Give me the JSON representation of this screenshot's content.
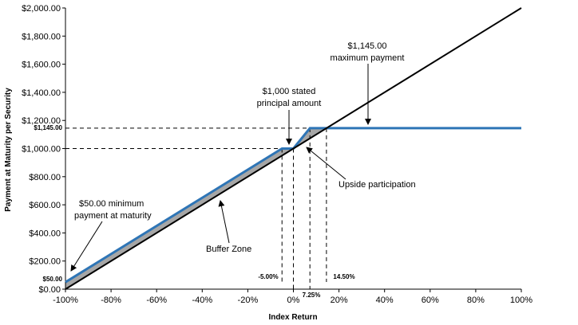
{
  "chart_data": {
    "type": "line",
    "xlabel": "Index Return",
    "ylabel": "Payment at Maturity per Security",
    "x_ticks": [
      "-100%",
      "-80%",
      "-60%",
      "-40%",
      "-20%",
      "0%",
      "20%",
      "40%",
      "60%",
      "80%",
      "100%"
    ],
    "y_ticks": [
      "$0.00",
      "$200.00",
      "$400.00",
      "$600.00",
      "$800.00",
      "$1,000.00",
      "$1,200.00",
      "$1,400.00",
      "$1,600.00",
      "$1,800.00",
      "$2,000.00"
    ],
    "x_range": [
      -100,
      100
    ],
    "y_range": [
      0,
      2000
    ],
    "grid": false,
    "series": [
      {
        "color": "#000000",
        "points": [
          [
            -100,
            0
          ],
          [
            100,
            2000
          ]
        ]
      },
      {
        "color": "#2e75b6",
        "points": [
          [
            -100,
            50
          ],
          [
            -5,
            1000
          ],
          [
            0,
            1000
          ],
          [
            7.25,
            1145
          ],
          [
            100,
            1145
          ]
        ]
      }
    ],
    "shaded_regions": [
      {
        "color": "#a6a6a6",
        "points": [
          [
            -100,
            50
          ],
          [
            -5,
            1000
          ],
          [
            0,
            1000
          ],
          [
            -100,
            0
          ]
        ]
      },
      {
        "color": "#a6a6a6",
        "points": [
          [
            0,
            1000
          ],
          [
            7.25,
            1145
          ],
          [
            14.5,
            1145
          ]
        ]
      }
    ],
    "reference_labels": {
      "y_1145": "$1,145.00",
      "y_50": "$50.00",
      "x_neg5": "-5.00%",
      "x_725": "7.25%",
      "x_1450": "14.50%"
    },
    "annotations": {
      "max_payment_value": "$1,145.00",
      "max_payment_text": "maximum payment",
      "stated_principal_line1": "$1,000 stated",
      "stated_principal_line2": "principal amount",
      "upside": "Upside participation",
      "min_payment_line1": "$50.00 minimum",
      "min_payment_line2": "payment at maturity",
      "buffer_zone": "Buffer Zone"
    },
    "colors": {
      "payoff_line": "#2e75b6",
      "index_line": "#000000",
      "shade": "#a6a6a6"
    }
  }
}
